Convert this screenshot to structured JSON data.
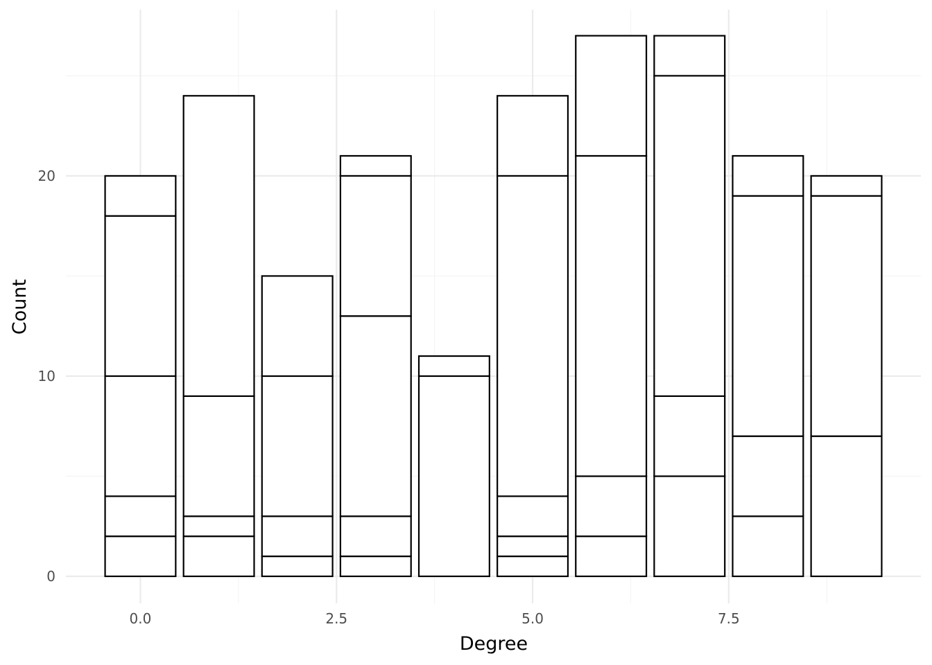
{
  "chart_data": {
    "type": "bar",
    "stacked": true,
    "title": "",
    "xlabel": "Degree",
    "ylabel": "Count",
    "x": [
      0,
      1,
      2,
      3,
      4,
      5,
      6,
      7,
      8,
      9
    ],
    "segment_boundaries": [
      [
        2,
        4,
        10,
        18,
        20
      ],
      [
        2,
        3,
        9,
        24
      ],
      [
        1,
        3,
        10,
        15
      ],
      [
        1,
        3,
        13,
        20,
        21
      ],
      [
        10,
        11
      ],
      [
        1,
        2,
        4,
        20,
        24
      ],
      [
        2,
        5,
        21,
        27
      ],
      [
        5,
        9,
        25,
        27
      ],
      [
        3,
        7,
        19,
        21
      ],
      [
        7,
        19,
        20
      ]
    ],
    "totals": [
      20,
      24,
      15,
      21,
      11,
      24,
      27,
      27,
      21,
      20
    ],
    "xlim": [
      -0.95,
      9.95
    ],
    "ylim": [
      -1.35,
      28.3
    ],
    "x_ticks": [
      "0.0",
      "2.5",
      "5.0",
      "7.5"
    ],
    "x_tick_values": [
      0,
      2.5,
      5,
      7.5
    ],
    "y_ticks": [
      "0",
      "10",
      "20"
    ],
    "y_tick_values": [
      0,
      10,
      20
    ],
    "grid": true,
    "legend": "none",
    "colors": {
      "bar_fill": "#ffffff",
      "bar_stroke": "#000000",
      "grid_major": "#ebebeb",
      "grid_minor": "#f4f4f4",
      "tick_text": "#4d4d4d"
    }
  }
}
